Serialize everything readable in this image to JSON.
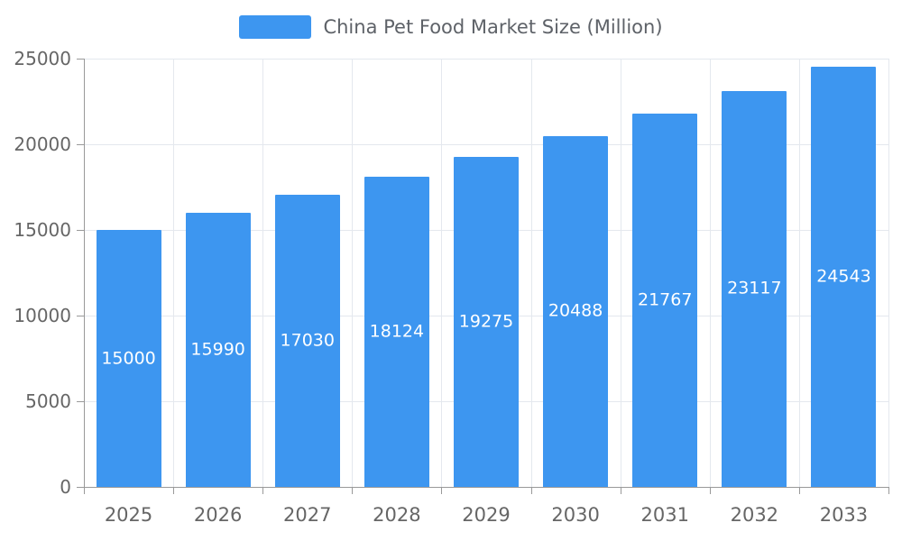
{
  "chart_data": {
    "type": "bar",
    "title": "China Pet Food Market Size (Million)",
    "categories": [
      "2025",
      "2026",
      "2027",
      "2028",
      "2029",
      "2030",
      "2031",
      "2032",
      "2033"
    ],
    "values": [
      15000,
      15990,
      17030,
      18124,
      19275,
      20488,
      21767,
      23117,
      24543
    ],
    "xlabel": "",
    "ylabel": "",
    "ylim": [
      0,
      25000
    ],
    "yticks": [
      0,
      5000,
      10000,
      15000,
      20000,
      25000
    ],
    "grid": true,
    "legend_position": "top-center",
    "value_labels_position": "inside-center",
    "colors": {
      "bar": "#3D96F0",
      "value_label": "#FFFFFF",
      "axis_text": "#666666",
      "legend_text": "#5E6268",
      "grid_line": "#E4E8EE",
      "axis_line": "#999999",
      "background": "#FFFFFF"
    }
  }
}
